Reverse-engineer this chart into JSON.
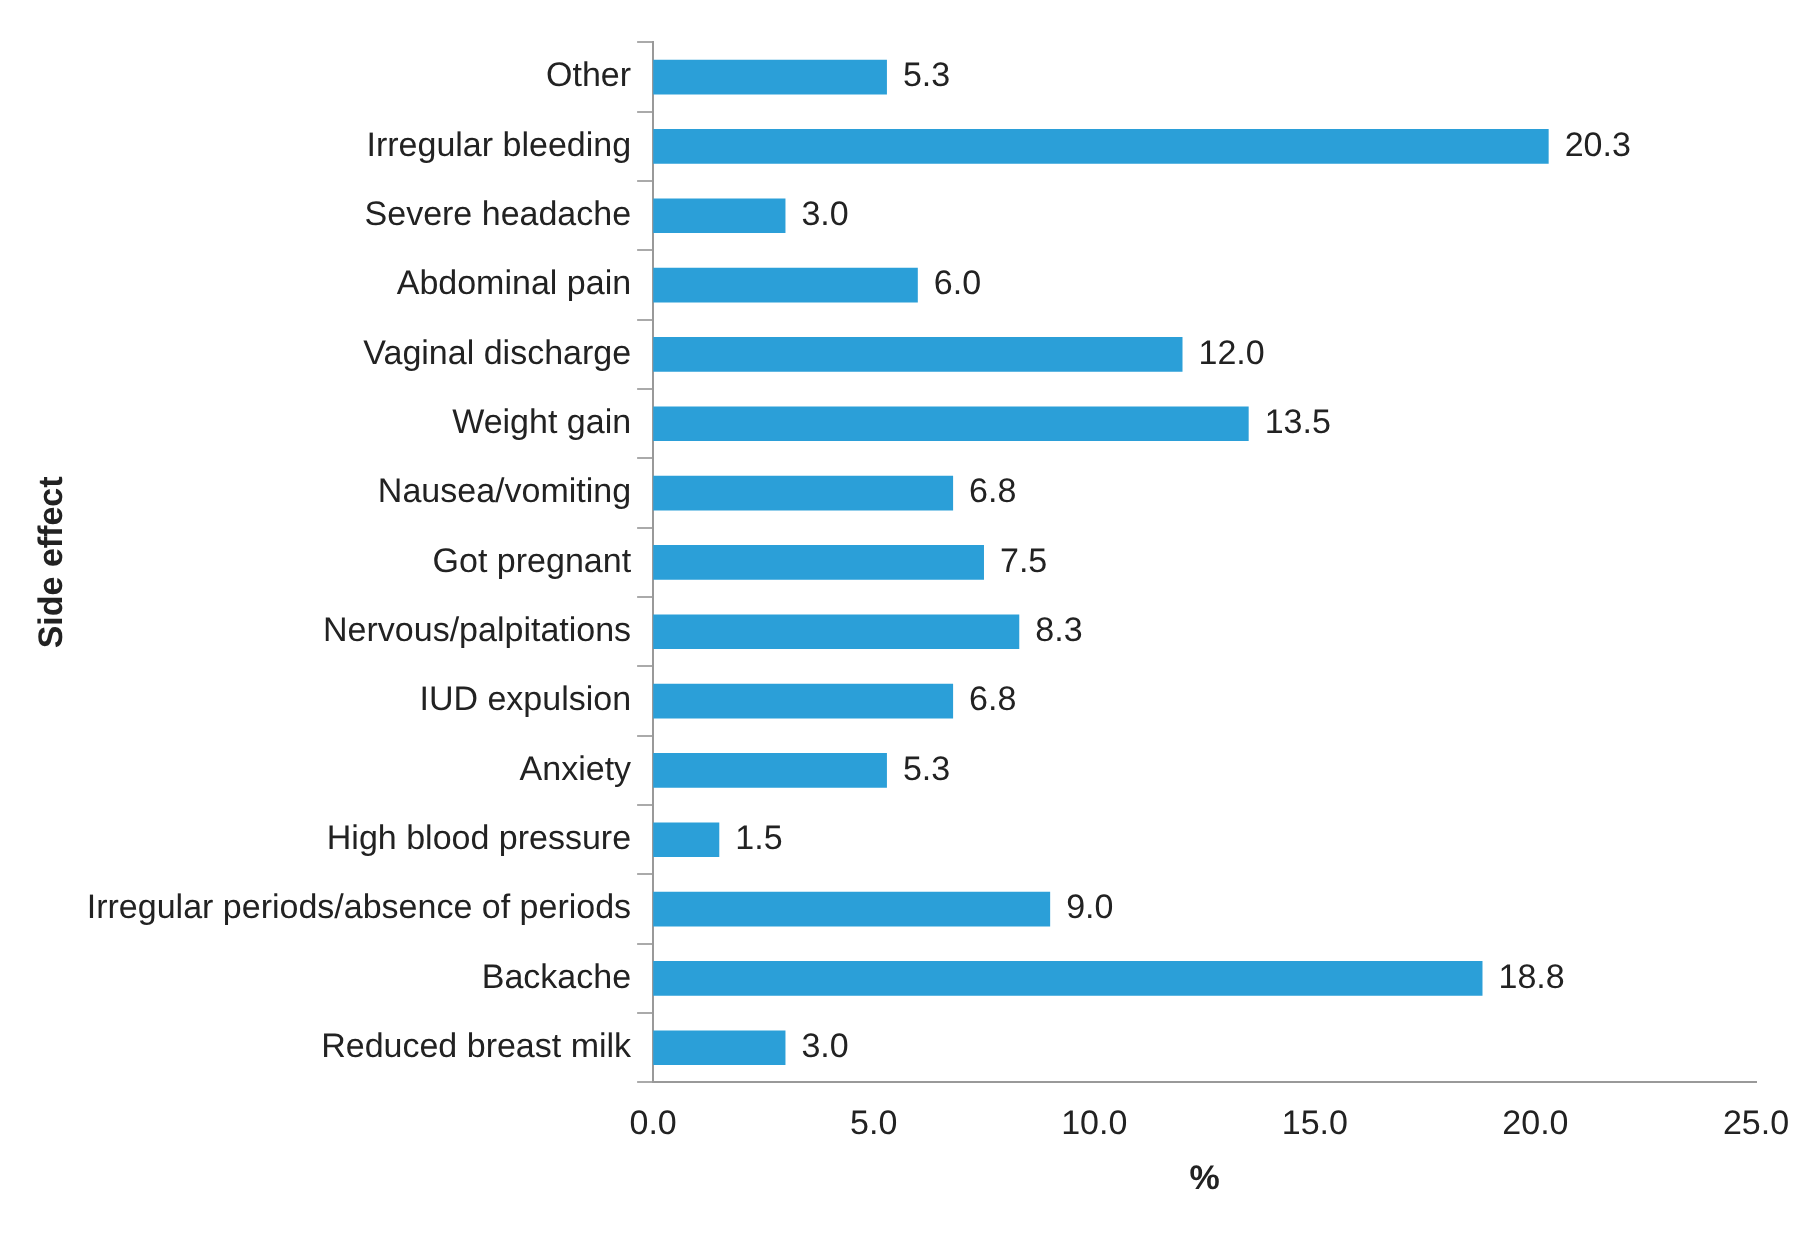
{
  "chart_data": {
    "type": "bar",
    "orientation": "horizontal",
    "xlabel": "%",
    "ylabel": "Side effect",
    "categories": [
      "Other",
      "Irregular bleeding",
      "Severe headache",
      "Abdominal pain",
      "Vaginal discharge",
      "Weight gain",
      "Nausea/vomiting",
      "Got pregnant",
      "Nervous/palpitations",
      "IUD expulsion",
      "Anxiety",
      "High blood pressure",
      "Irregular periods/absence of periods",
      "Backache",
      "Reduced breast milk"
    ],
    "values": [
      5.3,
      20.3,
      3.0,
      6.0,
      12.0,
      13.5,
      6.8,
      7.5,
      8.3,
      6.8,
      5.3,
      1.5,
      9.0,
      18.8,
      3.0
    ],
    "value_labels": [
      "5.3",
      "20.3",
      "3.0",
      "6.0",
      "12.0",
      "13.5",
      "6.8",
      "7.5",
      "8.3",
      "6.8",
      "5.3",
      "1.5",
      "9.0",
      "18.8",
      "3.0"
    ],
    "color": "#2b9fd8",
    "xlim": [
      0,
      25
    ],
    "xticks": [
      {
        "value": 0,
        "label": "0.0"
      },
      {
        "value": 5,
        "label": "5.0"
      },
      {
        "value": 10,
        "label": "10.0"
      },
      {
        "value": 15,
        "label": "15.0"
      },
      {
        "value": 20,
        "label": "20.0"
      },
      {
        "value": 25,
        "label": "25.0"
      }
    ],
    "grid": false,
    "legend": false
  }
}
